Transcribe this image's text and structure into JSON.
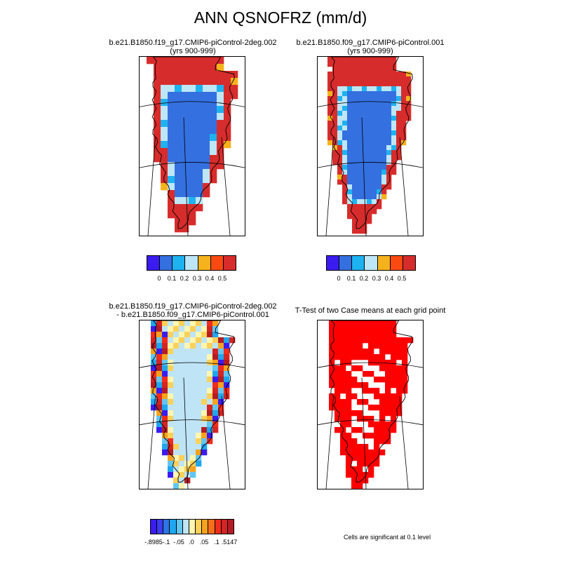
{
  "title": "ANN QSNOFRZ (mm/d)",
  "panels": [
    {
      "title": "b.e21.B1850.f19_g17.CMIP6-piControl-2deg.002",
      "subtitle": "(yrs 900-999)"
    },
    {
      "title": "b.e21.B1850.f09_g17.CMIP6-piControl.001",
      "subtitle": "(yrs 900-999)"
    },
    {
      "title": "b.e21.B1850.f19_g17.CMIP6-piControl-2deg.002",
      "subtitle": "- b.e21.B1850.f09_g17.CMIP6-piControl.001"
    },
    {
      "title": "T-Test of two Case means at each grid point",
      "subtitle": ""
    }
  ],
  "colorbar_main": {
    "colors": [
      "#3a1cf0",
      "#3470e0",
      "#1fb2f0",
      "#bde6f6",
      "#f6b21c",
      "#fa4a12",
      "#d72c2c"
    ],
    "labels": [
      "0",
      "0.1",
      "0.2",
      "0.3",
      "0.4",
      "0.5"
    ]
  },
  "colorbar_diff": {
    "colors": [
      "#3a1cf0",
      "#3c3cf0",
      "#2f74e6",
      "#1fa6ee",
      "#62c6f2",
      "#bfe4f6",
      "#fff6b0",
      "#fbd15a",
      "#f6a21e",
      "#f4701c",
      "#f02c1c",
      "#d42424",
      "#b41c24"
    ],
    "labels": [
      "-.8985",
      "-.1",
      "-.05",
      ".0",
      ".05",
      ".1",
      ".5147"
    ]
  },
  "significance_color": "#ff0000",
  "note": "Cells are significant at 0.1 level"
}
